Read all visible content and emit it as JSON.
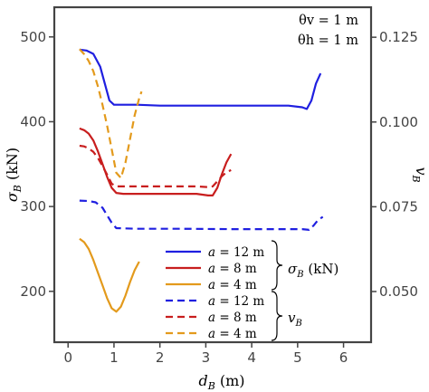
{
  "chart_data": {
    "type": "line",
    "annotation": {
      "theta_v": "θv = 1 m",
      "theta_h": "θh = 1 m"
    },
    "xlabel": {
      "main": "d",
      "sub": "B",
      "unit": " (m)"
    },
    "ylabel_left": {
      "main": "σ",
      "sub": "B",
      "unit": " (kN)"
    },
    "ylabel_right": {
      "main": "v",
      "sub": "B"
    },
    "xlim": [
      -0.3,
      6.6
    ],
    "ylim_left": [
      140,
      535
    ],
    "ylim_right": [
      0.03505,
      0.13385
    ],
    "x_ticks": [
      0,
      1,
      2,
      3,
      4,
      5,
      6
    ],
    "y_left_ticks": [
      200,
      300,
      400,
      500
    ],
    "y_right_ticks": [
      0.05,
      0.075,
      0.1,
      0.125
    ],
    "y_right_tick_labels": [
      "0.050",
      "0.075",
      "0.100",
      "0.125"
    ],
    "colors": {
      "a12": "#1f1fe0",
      "a8": "#c81e1e",
      "a4": "#e39a1c"
    },
    "series": [
      {
        "name": "a = 12 m",
        "group": "σB (kN)",
        "axis": "left",
        "dash": false,
        "color": "#1f1fe0",
        "x": [
          0.25,
          0.4,
          0.55,
          0.7,
          0.8,
          0.9,
          1.0,
          1.5,
          2.0,
          3.0,
          4.0,
          4.8,
          5.1,
          5.2,
          5.3,
          5.4,
          5.5
        ],
        "y": [
          485,
          484,
          480,
          465,
          445,
          425,
          420,
          420,
          419,
          419,
          419,
          419,
          417,
          415,
          425,
          445,
          457
        ]
      },
      {
        "name": "a = 8 m",
        "group": "σB (kN)",
        "axis": "left",
        "dash": false,
        "color": "#c81e1e",
        "x": [
          0.25,
          0.35,
          0.45,
          0.55,
          0.65,
          0.75,
          0.85,
          0.95,
          1.05,
          1.2,
          2.0,
          2.8,
          3.05,
          3.15,
          3.25,
          3.35,
          3.45,
          3.55
        ],
        "y": [
          392,
          390,
          386,
          378,
          365,
          350,
          335,
          322,
          316,
          315,
          315,
          315,
          313,
          313,
          322,
          338,
          352,
          362
        ]
      },
      {
        "name": "a = 4 m",
        "group": "σB (kN)",
        "axis": "left",
        "dash": false,
        "color": "#e39a1c",
        "x": [
          0.25,
          0.35,
          0.45,
          0.55,
          0.65,
          0.75,
          0.85,
          0.95,
          1.05,
          1.15,
          1.25,
          1.35,
          1.45,
          1.55
        ],
        "y": [
          262,
          258,
          250,
          237,
          222,
          207,
          192,
          180,
          176,
          182,
          195,
          211,
          225,
          235
        ]
      },
      {
        "name": "a = 12 m",
        "group": "vB",
        "axis": "right",
        "dash": true,
        "color": "#1f1fe0",
        "x": [
          0.25,
          0.45,
          0.6,
          0.75,
          0.85,
          0.95,
          1.05,
          1.5,
          2.5,
          3.5,
          4.5,
          5.1,
          5.25,
          5.35,
          5.45,
          5.55
        ],
        "y": [
          0.0768,
          0.0767,
          0.0763,
          0.0747,
          0.0725,
          0.0703,
          0.0687,
          0.0685,
          0.0685,
          0.0684,
          0.0684,
          0.0684,
          0.0682,
          0.0695,
          0.0712,
          0.072
        ]
      },
      {
        "name": "a = 8 m",
        "group": "vB",
        "axis": "right",
        "dash": true,
        "color": "#c81e1e",
        "x": [
          0.25,
          0.35,
          0.45,
          0.55,
          0.65,
          0.75,
          0.85,
          0.95,
          1.05,
          1.2,
          2.0,
          2.8,
          3.05,
          3.15,
          3.25,
          3.35,
          3.45,
          3.55
        ],
        "y": [
          0.093,
          0.0928,
          0.0922,
          0.0912,
          0.0894,
          0.087,
          0.0845,
          0.0818,
          0.081,
          0.081,
          0.081,
          0.081,
          0.0808,
          0.081,
          0.0825,
          0.084,
          0.0852,
          0.0858
        ]
      },
      {
        "name": "a = 4 m",
        "group": "vB",
        "axis": "right",
        "dash": true,
        "color": "#e39a1c",
        "x": [
          0.25,
          0.35,
          0.45,
          0.55,
          0.65,
          0.75,
          0.85,
          0.95,
          1.05,
          1.15,
          1.25,
          1.35,
          1.45,
          1.55,
          1.6
        ],
        "y": [
          0.1215,
          0.12,
          0.118,
          0.115,
          0.1105,
          0.105,
          0.099,
          0.092,
          0.085,
          0.0835,
          0.088,
          0.095,
          0.102,
          0.107,
          0.109
        ]
      }
    ],
    "legend": {
      "entries": [
        {
          "label_var": "a",
          "label_rest": " = 12 m",
          "color": "#1f1fe0",
          "dash": false
        },
        {
          "label_var": "a",
          "label_rest": " = 8 m",
          "color": "#c81e1e",
          "dash": false
        },
        {
          "label_var": "a",
          "label_rest": " = 4 m",
          "color": "#e39a1c",
          "dash": false
        },
        {
          "label_var": "a",
          "label_rest": " = 12 m",
          "color": "#1f1fe0",
          "dash": true
        },
        {
          "label_var": "a",
          "label_rest": " = 8 m",
          "color": "#c81e1e",
          "dash": true
        },
        {
          "label_var": "a",
          "label_rest": " = 4 m",
          "color": "#e39a1c",
          "dash": true
        }
      ],
      "groups": [
        {
          "main": "σ",
          "sub": "B",
          "unit": " (kN)"
        },
        {
          "main": "v",
          "sub": "B",
          "unit": ""
        }
      ],
      "placement": "lower-right"
    },
    "grid": false
  }
}
